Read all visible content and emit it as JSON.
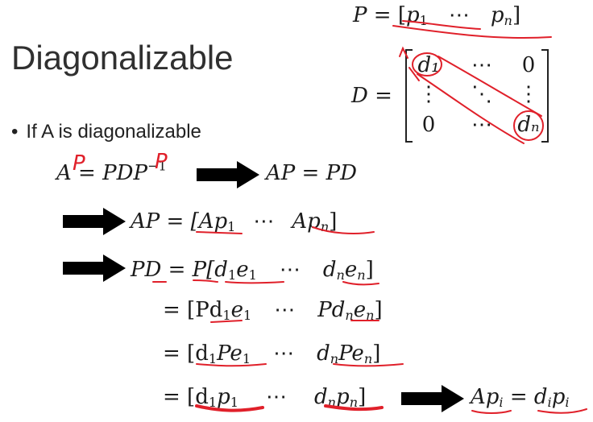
{
  "slide": {
    "title": "Diagonalizable",
    "bullet": "If A is diagonalizable"
  },
  "equations": {
    "p_def": {
      "lhs": "P",
      "eq": "=",
      "open": "[",
      "p1": "p",
      "p1_sub": "1",
      "dots": "⋯",
      "pn": "p",
      "pn_sub": "n",
      "close": "]"
    },
    "d_def": {
      "lhs": "D",
      "eq": "=",
      "cells": [
        [
          "d₁",
          "⋯",
          "0"
        ],
        [
          "⋮",
          "⋱",
          "⋮"
        ],
        [
          "0",
          "⋯",
          "dₙ"
        ]
      ]
    },
    "line1": {
      "A": "A",
      "eq": "=",
      "rhs": "PDP",
      "sup": "−1",
      "result": "AP = PD"
    },
    "line2": {
      "lhs": "AP = [",
      "ap1": "Ap",
      "ap1_sub": "1",
      "dots": "⋯",
      "apn": "Ap",
      "apn_sub": "n",
      "close": "]"
    },
    "line3": {
      "text_a": "PD = P[d",
      "s1": "1",
      "text_b": "e",
      "s2": "1",
      "dots": "⋯",
      "text_c": "d",
      "s3": "n",
      "text_d": "e",
      "s4": "n",
      "close": "]"
    },
    "line4": {
      "text_a": "= [Pd",
      "s1": "1",
      "text_b": "e",
      "s2": "1",
      "dots": "⋯",
      "text_c": "Pd",
      "s3": "n",
      "text_d": "e",
      "s4": "n",
      "close": "]"
    },
    "line5": {
      "text_a": "= [d",
      "s1": "1",
      "text_b": "Pe",
      "s2": "1",
      "dots": "⋯",
      "text_c": "d",
      "s3": "n",
      "text_d": "Pe",
      "s4": "n",
      "close": "]"
    },
    "line6": {
      "text_a": "= [d",
      "s1": "1",
      "text_b": "p",
      "s2": "1",
      "dots": "⋯",
      "text_c": "d",
      "s3": "n",
      "text_d": "p",
      "s4": "n",
      "close": "]",
      "result_a": "Ap",
      "rs1": "i",
      "result_eq": " = d",
      "rs2": "i",
      "result_b": "p",
      "rs3": "i"
    }
  },
  "annotations": {
    "handwritten_p1": "P",
    "handwritten_p2": "P",
    "ink_color": "#e0202a",
    "arrow_color": "#000000"
  }
}
